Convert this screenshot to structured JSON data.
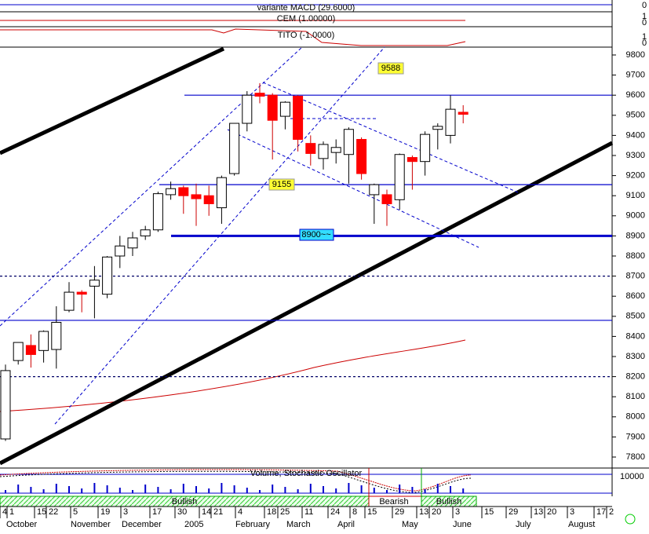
{
  "chart_data": {
    "type": "candlestick",
    "panel_labels": [
      "variante MACD (29.6000)",
      "CEM (1.00000)",
      "TITO (-1.0000)"
    ],
    "panel_ticks": [
      "0",
      "1",
      "0",
      "1",
      "0"
    ],
    "indicator_title": "Volume, Stochastic Oscillator",
    "indicator_tick": "10000",
    "signals": [
      "Bullish",
      "Bearish",
      "Bullish"
    ],
    "annotations": [
      "9588",
      "9155",
      "8900~~"
    ],
    "open": [
      7890,
      8280,
      8355,
      8330,
      8335,
      8530,
      8620,
      8650,
      8610,
      8800,
      8840,
      8900,
      8930,
      9105,
      9140,
      9105,
      9100,
      9040,
      9210,
      9460,
      9610,
      9600,
      9495,
      9595,
      9360,
      9285,
      9315,
      9305,
      9380,
      9105,
      9105,
      9080,
      9290,
      9270,
      9430,
      9400,
      9515
    ],
    "high": [
      8260,
      8370,
      8410,
      8430,
      8550,
      8670,
      8630,
      8750,
      8800,
      8900,
      8920,
      8950,
      9120,
      9170,
      9150,
      9160,
      9150,
      9200,
      9460,
      9620,
      9660,
      9610,
      9570,
      9600,
      9400,
      9370,
      9380,
      9440,
      9390,
      9160,
      9130,
      9310,
      9300,
      9420,
      9460,
      9600,
      9550
    ],
    "low": [
      7880,
      8260,
      8245,
      8270,
      8240,
      8520,
      8520,
      8490,
      8590,
      8740,
      8800,
      8880,
      8920,
      9080,
      9010,
      8950,
      9000,
      8960,
      9200,
      9420,
      9560,
      9280,
      9430,
      9320,
      9250,
      9230,
      9260,
      9160,
      9180,
      8960,
      8950,
      9030,
      9130,
      9200,
      9330,
      9360,
      9460
    ],
    "close": [
      8230,
      8370,
      8310,
      8425,
      8470,
      8620,
      8610,
      8680,
      8795,
      8850,
      8890,
      8930,
      9110,
      9135,
      9100,
      9085,
      9060,
      9190,
      9460,
      9600,
      9595,
      9475,
      9565,
      9380,
      9310,
      9355,
      9340,
      9430,
      9210,
      9155,
      9060,
      9305,
      9270,
      9405,
      9445,
      9530,
      9505
    ],
    "up_color": "#ffffff",
    "down_color": "#ff0000",
    "ylim": [
      7800,
      9800
    ],
    "yticks": [
      9800,
      9700,
      9600,
      9500,
      9400,
      9300,
      9200,
      9100,
      9000,
      8900,
      8800,
      8700,
      8600,
      8500,
      8400,
      8300,
      8200,
      8100,
      8000,
      7900,
      7800
    ],
    "hlines": [
      {
        "value": 9600,
        "color": "#0000cc"
      },
      {
        "value": 9155,
        "color": "#0000cc"
      },
      {
        "value": 8900,
        "color": "#0000cc"
      },
      {
        "value": 8480,
        "color": "#0000cc"
      },
      {
        "value": 8700,
        "color": "#000066"
      },
      {
        "value": 8200,
        "color": "#000066"
      }
    ],
    "x_day_labels": [
      "4",
      "1",
      "15",
      "22",
      "5",
      "19",
      "3",
      "17",
      "30",
      "14",
      "21",
      "4",
      "18",
      "25",
      "11",
      "24",
      "8",
      "15",
      "29",
      "13",
      "20",
      "3",
      "15",
      "29",
      "13",
      "20",
      "3",
      "17",
      "2"
    ],
    "x_month_labels": [
      "October",
      "November",
      "December",
      "2005",
      "February",
      "March",
      "April",
      "May",
      "June",
      "July",
      "August"
    ]
  }
}
